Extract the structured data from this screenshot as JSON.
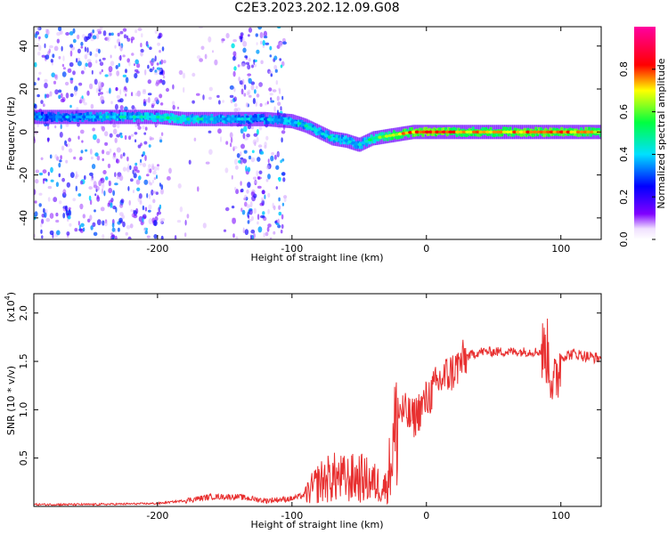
{
  "title": "C2E3.2023.202.12.09.G08",
  "colors": {
    "snr_line": "#e83030",
    "axes": "#000000"
  },
  "chart_data": [
    {
      "type": "heatmap",
      "xlabel": "Height of straight line (km)",
      "ylabel": "Frequency (Hz)",
      "xlim": [
        -292,
        130
      ],
      "ylim": [
        -50,
        49
      ],
      "xticks": [
        -200,
        -100,
        0,
        100
      ],
      "xtick_labels": [
        "-200",
        "-100",
        "0",
        "100"
      ],
      "yticks": [
        -40,
        -20,
        0,
        20,
        40
      ],
      "ytick_labels": [
        "-40",
        "-20",
        "0",
        "20",
        "40"
      ],
      "colorbar": {
        "label": "Normalized spectral amplitude",
        "range": [
          0,
          1
        ],
        "ticks": [
          0.0,
          0.2,
          0.4,
          0.6,
          0.8
        ],
        "tick_labels": [
          "0.0",
          "0.2",
          "0.4",
          "0.6",
          "0.8"
        ],
        "colormap": "rainbow (white → violet → blue → cyan → green → yellow → red → magenta)"
      },
      "ridge": [
        {
          "x": -292,
          "f": 7,
          "a": 0.3
        },
        {
          "x": -260,
          "f": 7,
          "a": 0.35
        },
        {
          "x": -220,
          "f": 7,
          "a": 0.4
        },
        {
          "x": -200,
          "f": 7,
          "a": 0.45
        },
        {
          "x": -180,
          "f": 6,
          "a": 0.45
        },
        {
          "x": -160,
          "f": 6,
          "a": 0.4
        },
        {
          "x": -140,
          "f": 6,
          "a": 0.35
        },
        {
          "x": -120,
          "f": 6,
          "a": 0.35
        },
        {
          "x": -100,
          "f": 5,
          "a": 0.4
        },
        {
          "x": -90,
          "f": 3,
          "a": 0.4
        },
        {
          "x": -80,
          "f": 0,
          "a": 0.4
        },
        {
          "x": -70,
          "f": -3,
          "a": 0.45
        },
        {
          "x": -60,
          "f": -4,
          "a": 0.4
        },
        {
          "x": -50,
          "f": -6,
          "a": 0.4
        },
        {
          "x": -40,
          "f": -3,
          "a": 0.5
        },
        {
          "x": -30,
          "f": -2,
          "a": 0.6
        },
        {
          "x": -20,
          "f": -1,
          "a": 0.7
        },
        {
          "x": -10,
          "f": 0,
          "a": 0.75
        },
        {
          "x": 0,
          "f": 0,
          "a": 0.8
        },
        {
          "x": 20,
          "f": 0,
          "a": 0.75
        },
        {
          "x": 40,
          "f": 0,
          "a": 0.7
        },
        {
          "x": 60,
          "f": 0,
          "a": 0.7
        },
        {
          "x": 80,
          "f": 0,
          "a": 0.75
        },
        {
          "x": 100,
          "f": 0,
          "a": 0.75
        },
        {
          "x": 130,
          "f": 0,
          "a": 0.7
        }
      ],
      "noise_regions": [
        {
          "x_from": -292,
          "x_to": -195,
          "intensity": 0.7
        },
        {
          "x_from": -145,
          "x_to": -105,
          "intensity": 0.8
        },
        {
          "x_from": -195,
          "x_to": -145,
          "intensity": 0.12
        }
      ]
    },
    {
      "type": "line",
      "xlabel": "Height of straight line (km)",
      "ylabel": "SNR (10 * v/v)",
      "scale_label": "(x10",
      "scale_exp": "4",
      "scale_close": ")",
      "xlim": [
        -292,
        130
      ],
      "ylim": [
        0,
        2.2
      ],
      "xticks": [
        -200,
        -100,
        0,
        100
      ],
      "xtick_labels": [
        "-200",
        "-100",
        "0",
        "100"
      ],
      "yticks": [
        0.5,
        1.0,
        1.5,
        2.0
      ],
      "ytick_labels": [
        "0.5",
        "1.0",
        "1.5",
        "2.0"
      ],
      "series": [
        {
          "x": [
            -292,
            -250,
            -200,
            -180,
            -160,
            -140,
            -120,
            -100,
            -90,
            -80,
            -70,
            -60,
            -50,
            -40,
            -30,
            -20,
            -10,
            0,
            10,
            20,
            30,
            40,
            50,
            60,
            70,
            80,
            90,
            95,
            100,
            110,
            120,
            130
          ],
          "y": [
            0.02,
            0.02,
            0.03,
            0.06,
            0.1,
            0.1,
            0.06,
            0.08,
            0.12,
            0.25,
            0.3,
            0.28,
            0.3,
            0.25,
            0.2,
            1.0,
            0.9,
            1.1,
            1.3,
            1.4,
            1.55,
            1.6,
            1.6,
            1.6,
            1.6,
            1.6,
            1.6,
            1.2,
            1.55,
            1.58,
            1.55,
            1.53
          ]
        }
      ]
    }
  ]
}
